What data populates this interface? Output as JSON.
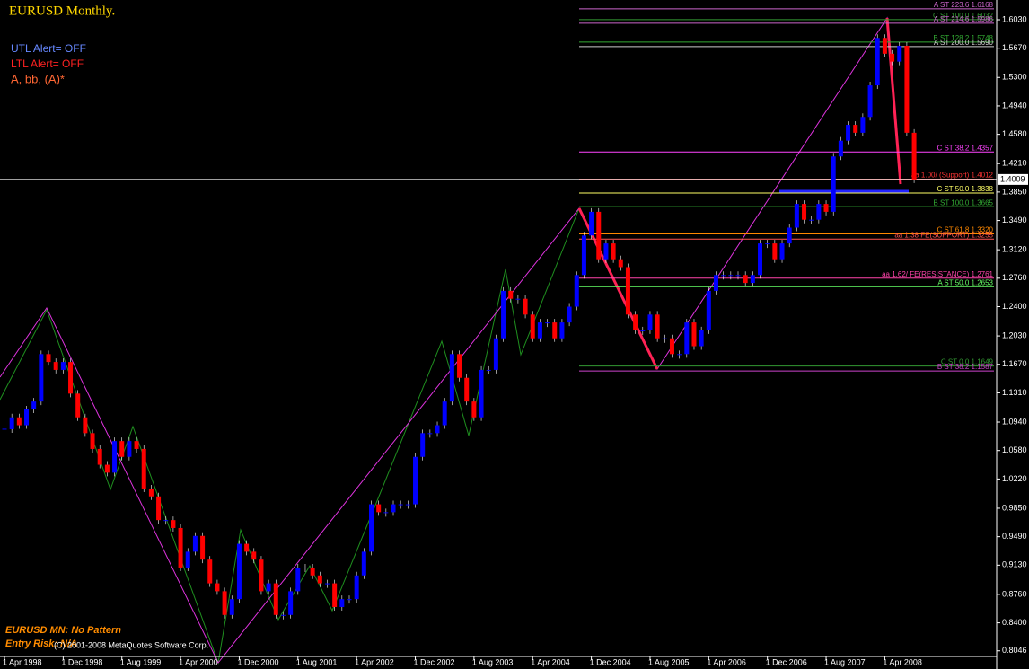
{
  "chart_data": {
    "type": "candlestick",
    "title": "EURUSD Monthly.",
    "annotations": {
      "utl_alert": "UTL Alert= OFF",
      "ltl_alert": "LTL Alert= OFF",
      "wave_label": "A, bb, (A)*",
      "pattern": "EURUSD MN: No Pattern",
      "entry_risk": "Entry Risk: N/A",
      "copyright": "(C) 2001-2008 MetaQuotes Software Corp."
    },
    "categories": [
      "1 Apr 1998",
      null,
      null,
      null,
      null,
      null,
      null,
      null,
      "1 Dec 1998",
      null,
      null,
      null,
      null,
      null,
      null,
      null,
      "1 Aug 1999",
      null,
      null,
      null,
      null,
      null,
      null,
      null,
      "1 Apr 2000",
      null,
      null,
      null,
      null,
      null,
      null,
      null,
      "1 Dec 2000",
      null,
      null,
      null,
      null,
      null,
      null,
      null,
      "1 Aug 2001",
      null,
      null,
      null,
      null,
      null,
      null,
      null,
      "1 Apr 2002",
      null,
      null,
      null,
      null,
      null,
      null,
      null,
      "1 Dec 2002",
      null,
      null,
      null,
      null,
      null,
      null,
      null,
      "1 Aug 2003",
      null,
      null,
      null,
      null,
      null,
      null,
      null,
      "1 Apr 2004",
      null,
      null,
      null,
      null,
      null,
      null,
      null,
      "1 Dec 2004",
      null,
      null,
      null,
      null,
      null,
      null,
      null,
      "1 Aug 2005",
      null,
      null,
      null,
      null,
      null,
      null,
      null,
      "1 Apr 2006",
      null,
      null,
      null,
      null,
      null,
      null,
      null,
      "1 Dec 2006",
      null,
      null,
      null,
      null,
      null,
      null,
      null,
      "1 Aug 2007",
      null,
      null,
      null,
      null,
      null,
      null,
      null,
      "1 Apr 2008",
      null,
      null,
      null,
      null
    ],
    "values": [
      1.085,
      1.1,
      1.09,
      1.11,
      1.12,
      1.18,
      1.17,
      1.16,
      1.17,
      1.13,
      1.1,
      1.08,
      1.06,
      1.04,
      1.03,
      1.07,
      1.05,
      1.07,
      1.06,
      1.01,
      1.0,
      0.97,
      0.97,
      0.96,
      0.91,
      0.93,
      0.95,
      0.92,
      0.89,
      0.88,
      0.85,
      0.87,
      0.94,
      0.93,
      0.92,
      0.88,
      0.89,
      0.85,
      0.85,
      0.88,
      0.91,
      0.91,
      0.9,
      0.89,
      0.89,
      0.86,
      0.87,
      0.87,
      0.9,
      0.93,
      0.99,
      0.98,
      0.98,
      0.99,
      0.99,
      0.99,
      1.05,
      1.08,
      1.08,
      1.09,
      1.12,
      1.18,
      1.15,
      1.12,
      1.1,
      1.16,
      1.16,
      1.2,
      1.26,
      1.25,
      1.25,
      1.23,
      1.2,
      1.22,
      1.22,
      1.2,
      1.22,
      1.24,
      1.28,
      1.33,
      1.36,
      1.3,
      1.32,
      1.3,
      1.29,
      1.23,
      1.21,
      1.21,
      1.23,
      1.2,
      1.2,
      1.18,
      1.18,
      1.22,
      1.19,
      1.21,
      1.26,
      1.28,
      1.28,
      1.28,
      1.28,
      1.27,
      1.28,
      1.32,
      1.32,
      1.3,
      1.32,
      1.34,
      1.37,
      1.35,
      1.35,
      1.37,
      1.36,
      1.43,
      1.45,
      1.47,
      1.46,
      1.48,
      1.52,
      1.58,
      1.56,
      1.55,
      1.57,
      1.46,
      1.4009
    ],
    "up_color": "#0000ff",
    "down_color": "#ff0000",
    "current_price": 1.4009,
    "ylim": [
      0.785,
      1.628
    ],
    "yticks": [
      {
        "value": 1.603,
        "label": "1.6030"
      },
      {
        "value": 1.567,
        "label": "1.5670"
      },
      {
        "value": 1.53,
        "label": "1.5300"
      },
      {
        "value": 1.494,
        "label": "1.4940"
      },
      {
        "value": 1.458,
        "label": "1.4580"
      },
      {
        "value": 1.421,
        "label": "1.4210"
      },
      {
        "value": 1.385,
        "label": "1.3850"
      },
      {
        "value": 1.349,
        "label": "1.3490"
      },
      {
        "value": 1.312,
        "label": "1.3120"
      },
      {
        "value": 1.276,
        "label": "1.2760"
      },
      {
        "value": 1.24,
        "label": "1.2400"
      },
      {
        "value": 1.203,
        "label": "1.2030"
      },
      {
        "value": 1.167,
        "label": "1.1670"
      },
      {
        "value": 1.131,
        "label": "1.1310"
      },
      {
        "value": 1.094,
        "label": "1.0940"
      },
      {
        "value": 1.058,
        "label": "1.0580"
      },
      {
        "value": 1.022,
        "label": "1.0220"
      },
      {
        "value": 0.985,
        "label": "0.9850"
      },
      {
        "value": 0.949,
        "label": "0.9490"
      },
      {
        "value": 0.913,
        "label": "0.9130"
      },
      {
        "value": 0.876,
        "label": "0.8760"
      },
      {
        "value": 0.84,
        "label": "0.8400"
      },
      {
        "value": 0.8046,
        "label": "0.8046"
      }
    ],
    "levels": [
      {
        "label": "A ST 223.6 1.6168",
        "value": 1.6168,
        "color": "#cc66cc"
      },
      {
        "label": "C ST 100.0 1.6032",
        "value": 1.6032,
        "color": "#339933"
      },
      {
        "label": "A ST 214.6 1.5986",
        "value": 1.5986,
        "color": "#cc66cc"
      },
      {
        "label": "B ST 128.2 1.5748",
        "value": 1.5748,
        "color": "#33aa33"
      },
      {
        "label": "A ST 200.0 1.5690",
        "value": 1.569,
        "color": "#cccccc"
      },
      {
        "label": "C ST 38.2 1.4357",
        "value": 1.4357,
        "color": "#ff44ff"
      },
      {
        "label": "aa 1.00/ (Support) 1.4012",
        "value": 1.4012,
        "color": "#ff3333"
      },
      {
        "label": "C ST 50.0 1.3838",
        "value": 1.3838,
        "color": "#ffff66"
      },
      {
        "label": "B ST 100.0 1.3665",
        "value": 1.3665,
        "color": "#33aa33"
      },
      {
        "label": "C ST 61.8 1.3320",
        "value": 1.332,
        "color": "#ff8800"
      },
      {
        "label": "aa 1.38 FE(SUPPORT) 1.3255",
        "value": 1.3255,
        "color": "#ff5555"
      },
      {
        "label": "aa 1.62/ FE(RESISTANCE) 1.2761",
        "value": 1.2761,
        "color": "#ff44aa"
      },
      {
        "label": "A ST 50.0 1.2653",
        "value": 1.2653,
        "color": "#66ff66"
      },
      {
        "label": "C ST 0.0 1.1649",
        "value": 1.1649,
        "color": "#339933"
      },
      {
        "label": "B ST 38.2 1.1587",
        "value": 1.1587,
        "color": "#cc44cc"
      }
    ]
  }
}
